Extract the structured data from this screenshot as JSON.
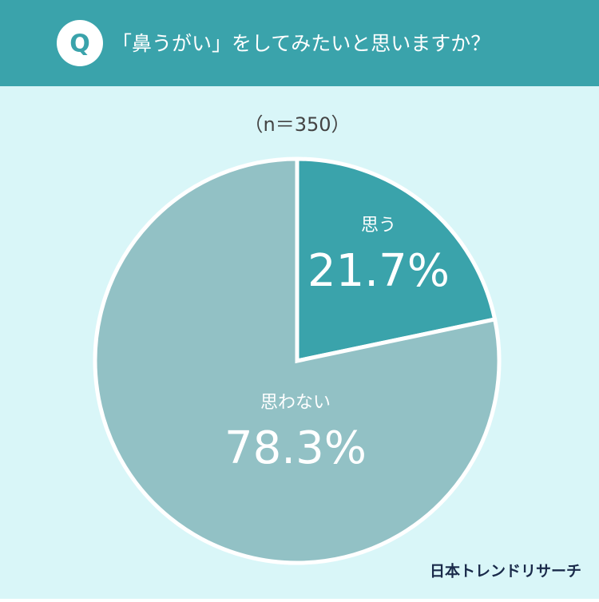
{
  "chart_data": {
    "type": "pie",
    "badge": "Q",
    "title": "「鼻うがい」をしてみたいと思いますか？",
    "subtitle": "（n＝350）",
    "categories": [
      "思う",
      "思わない"
    ],
    "values": [
      21.7,
      78.3
    ],
    "value_labels": [
      "21.7%",
      "78.3%"
    ],
    "colors": [
      "#3aa3ab",
      "#92c1c5"
    ],
    "source": "日本トレンドリサーチ"
  }
}
